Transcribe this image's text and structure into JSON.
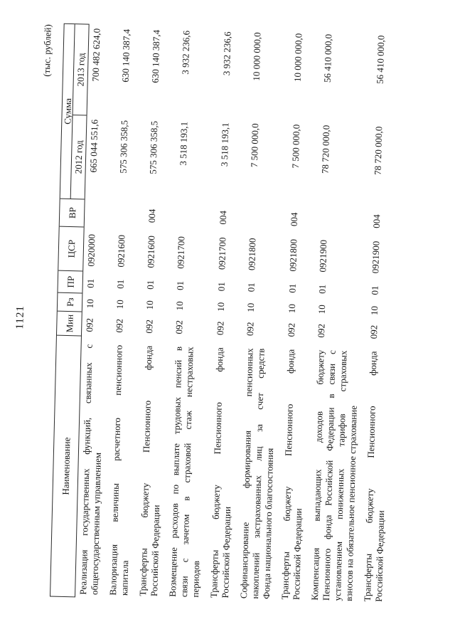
{
  "page": {
    "number": "1121",
    "units_note": "(тыс. рублей)"
  },
  "table": {
    "headers": {
      "name": "Наименование",
      "min": "Мин",
      "rz": "Рз",
      "pr": "ПР",
      "csr": "ЦСР",
      "vr": "ВР",
      "sum": "Сумма",
      "year2012": "2012 год",
      "year2013": "2013 год"
    },
    "rows": [
      {
        "name": "Реализация государственных функций, связанных с\nобщегосударственным управлением",
        "min": "092",
        "rz": "10",
        "pr": "01",
        "csr": "0920000",
        "vr": "",
        "y2012": "665 044 551,6",
        "y2013": "700 482 624,0"
      },
      {
        "name": "Валоризация величины расчетного пенсионного\nкапитала",
        "min": "092",
        "rz": "10",
        "pr": "01",
        "csr": "0921600",
        "vr": "",
        "y2012": "575 306 358,5",
        "y2013": "630 140 387,4"
      },
      {
        "name": "Трансферты бюджету Пенсионного фонда\nРоссийской Федерации",
        "min": "092",
        "rz": "10",
        "pr": "01",
        "csr": "0921600",
        "vr": "004",
        "y2012": "575 306 358,5",
        "y2013": "630 140 387,4"
      },
      {
        "name": "Возмещение расходов по выплате трудовых пенсий в\nсвязи с зачетом в страховой стаж нестраховых\nпериодов",
        "min": "092",
        "rz": "10",
        "pr": "01",
        "csr": "0921700",
        "vr": "",
        "y2012": "3 518 193,1",
        "y2013": "3 932 236,6"
      },
      {
        "name": "Трансферты бюджету Пенсионного фонда\nРоссийской Федерации",
        "min": "092",
        "rz": "10",
        "pr": "01",
        "csr": "0921700",
        "vr": "004",
        "y2012": "3 518 193,1",
        "y2013": "3 932 236,6"
      },
      {
        "name": "Софинансирование формирования пенсионных\nнакоплений застрахованных лиц за счет средств\nФонда национального благосостояния",
        "min": "092",
        "rz": "10",
        "pr": "01",
        "csr": "0921800",
        "vr": "",
        "y2012": "7 500 000,0",
        "y2013": "10 000 000,0"
      },
      {
        "name": "Трансферты бюджету Пенсионного фонда\nРоссийской Федерации",
        "min": "092",
        "rz": "10",
        "pr": "01",
        "csr": "0921800",
        "vr": "004",
        "y2012": "7 500 000,0",
        "y2013": "10 000 000,0"
      },
      {
        "name": "Компенсация выпадающих доходов бюджету\nПенсионного фонда Российской Федерации в связи с\nустановлением пониженных тарифов страховых\nвзносов на обязательное пенсионное страхование",
        "min": "092",
        "rz": "10",
        "pr": "01",
        "csr": "0921900",
        "vr": "",
        "y2012": "78 720 000,0",
        "y2013": "56 410 000,0"
      },
      {
        "name": "Трансферты бюджету Пенсионного фонда\nРоссийской Федерации",
        "min": "092",
        "rz": "10",
        "pr": "01",
        "csr": "0921900",
        "vr": "004",
        "y2012": "78 720 000,0",
        "y2013": "56 410 000,0"
      }
    ]
  }
}
